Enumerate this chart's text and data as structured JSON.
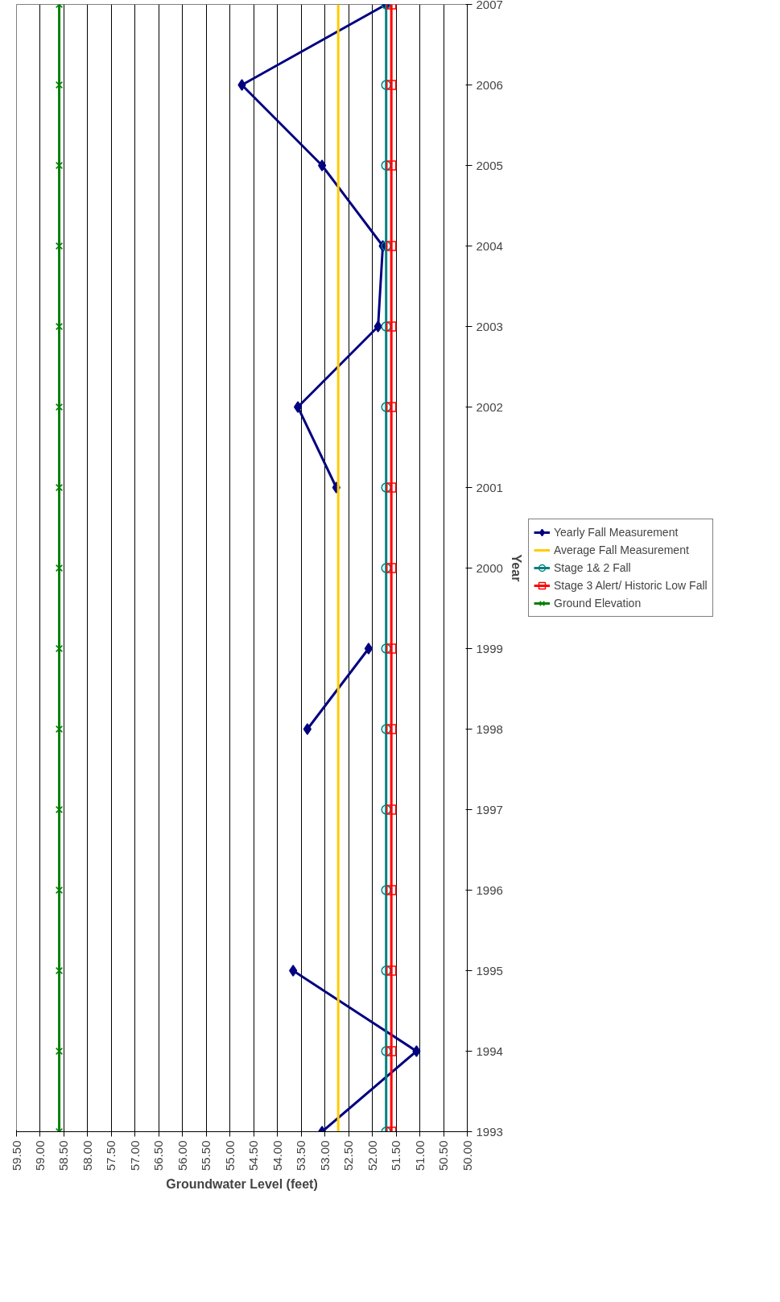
{
  "chart_data": {
    "type": "line",
    "orientation": "horizontal",
    "xlabel": "Groundwater Level (feet)",
    "ylabel": "Year",
    "categories": [
      "2007",
      "2006",
      "2005",
      "2004",
      "2003",
      "2002",
      "2001",
      "2000",
      "1999",
      "1998",
      "1997",
      "1996",
      "1995",
      "1994",
      "1993"
    ],
    "xlim": [
      59.5,
      50
    ],
    "xticks": [
      {
        "value": 59.5,
        "label": "59.50"
      },
      {
        "value": 59,
        "label": "59.00"
      },
      {
        "value": 58.5,
        "label": "58.50"
      },
      {
        "value": 58,
        "label": "58.00"
      },
      {
        "value": 57.5,
        "label": "57.50"
      },
      {
        "value": 57,
        "label": "57.00"
      },
      {
        "value": 56.5,
        "label": "56.50"
      },
      {
        "value": 56,
        "label": "56.00"
      },
      {
        "value": 55.5,
        "label": "55.50"
      },
      {
        "value": 55,
        "label": "55.00"
      },
      {
        "value": 54.5,
        "label": "54.50"
      },
      {
        "value": 54,
        "label": "54.00"
      },
      {
        "value": 53.5,
        "label": "53.50"
      },
      {
        "value": 53,
        "label": "53.00"
      },
      {
        "value": 52.5,
        "label": "52.50"
      },
      {
        "value": 52,
        "label": "52.00"
      },
      {
        "value": 51.5,
        "label": "51.50"
      },
      {
        "value": 51,
        "label": "51.00"
      },
      {
        "value": 50.5,
        "label": "50.50"
      },
      {
        "value": 50,
        "label": "50.00"
      }
    ],
    "grid": "x",
    "legend": "right",
    "series": [
      {
        "name": "Yearly Fall Measurement",
        "color": "#000080",
        "marker": "diamond",
        "values": [
          51.71,
          54.75,
          53.06,
          51.78,
          51.88,
          53.57,
          52.76,
          null,
          52.08,
          53.37,
          null,
          null,
          53.67,
          51.07,
          53.06
        ]
      },
      {
        "name": "Average Fall Measurement",
        "color": "#ffcc00",
        "marker": "none",
        "values": [
          52.72,
          52.72,
          52.72,
          52.72,
          52.72,
          52.72,
          52.72,
          52.72,
          52.72,
          52.72,
          52.72,
          52.72,
          52.72,
          52.72,
          52.72
        ]
      },
      {
        "name": "Stage 1& 2 Fall",
        "color": "#008080",
        "marker": "circle",
        "values": [
          51.71,
          51.71,
          51.71,
          51.71,
          51.71,
          51.71,
          51.71,
          51.71,
          51.71,
          51.71,
          51.71,
          51.71,
          51.71,
          51.71,
          51.71
        ]
      },
      {
        "name": "Stage 3 Alert/ Historic Low Fall",
        "color": "#ff0000",
        "marker": "square",
        "values": [
          51.6,
          51.6,
          51.6,
          51.6,
          51.6,
          51.6,
          51.6,
          51.6,
          51.6,
          51.6,
          51.6,
          51.6,
          51.6,
          51.6,
          51.6
        ]
      },
      {
        "name": "Ground Elevation",
        "color": "#008000",
        "marker": "cross",
        "values": [
          58.6,
          58.6,
          58.6,
          58.6,
          58.6,
          58.6,
          58.6,
          58.6,
          58.6,
          58.6,
          58.6,
          58.6,
          58.6,
          58.6,
          58.6
        ]
      }
    ]
  }
}
